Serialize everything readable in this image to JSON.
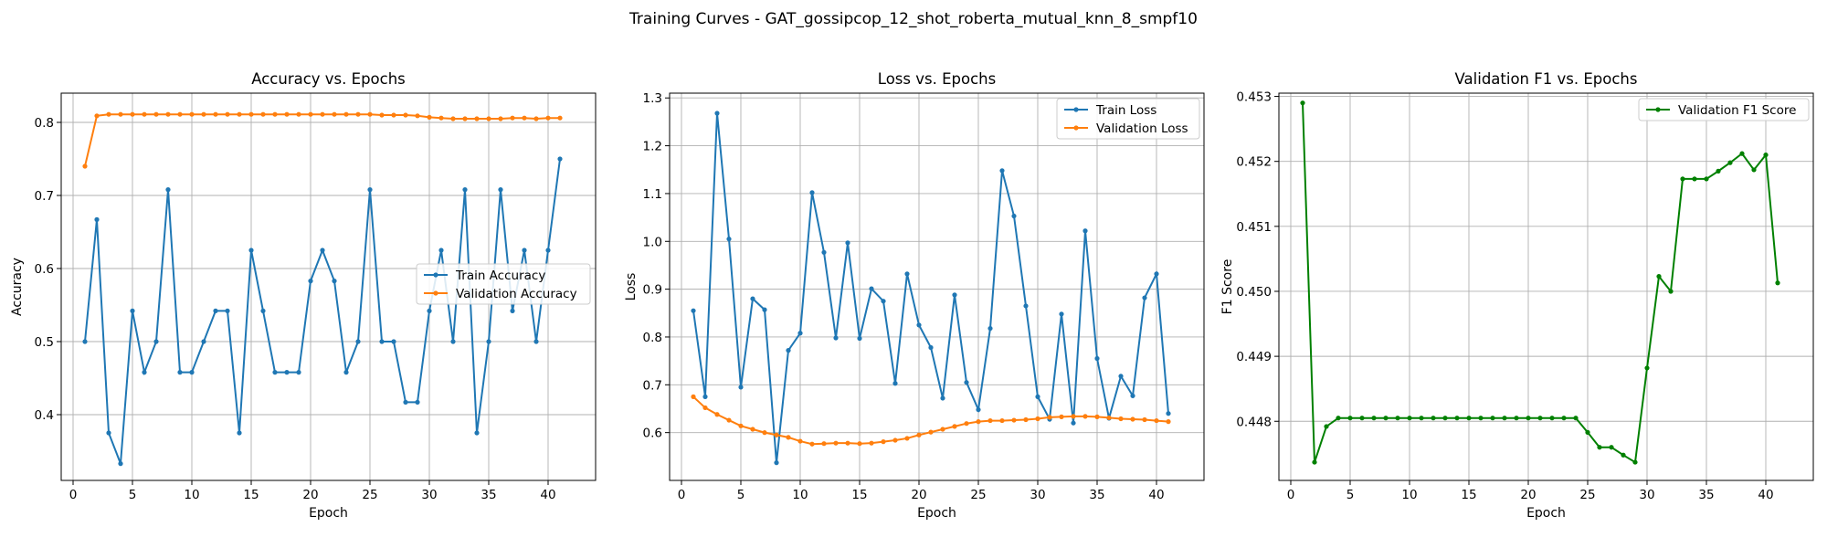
{
  "suptitle": "Training Curves - GAT_gossipcop_12_shot_roberta_mutual_knn_8_smpf10",
  "colors": {
    "blue": "#1f77b4",
    "orange": "#ff7f0e",
    "green": "#008000",
    "grid": "#b0b0b0"
  },
  "chart_data": [
    {
      "type": "line",
      "title": "Accuracy vs. Epochs",
      "xlabel": "Epoch",
      "ylabel": "Accuracy",
      "xlim": [
        -1,
        44
      ],
      "ylim": [
        0.31,
        0.84
      ],
      "xticks": [
        0,
        5,
        10,
        15,
        20,
        25,
        30,
        35,
        40
      ],
      "yticks": [
        0.4,
        0.5,
        0.6,
        0.7,
        0.8
      ],
      "grid": true,
      "legend": "center-right",
      "x": [
        1,
        2,
        3,
        4,
        5,
        6,
        7,
        8,
        9,
        10,
        11,
        12,
        13,
        14,
        15,
        16,
        17,
        18,
        19,
        20,
        21,
        22,
        23,
        24,
        25,
        26,
        27,
        28,
        29,
        30,
        31,
        32,
        33,
        34,
        35,
        36,
        37,
        38,
        39,
        40,
        41
      ],
      "series": [
        {
          "name": "Train Accuracy",
          "color": "#1f77b4",
          "values": [
            0.5,
            0.667,
            0.375,
            0.333,
            0.542,
            0.458,
            0.5,
            0.708,
            0.458,
            0.458,
            0.5,
            0.542,
            0.542,
            0.375,
            0.625,
            0.542,
            0.458,
            0.458,
            0.458,
            0.583,
            0.625,
            0.583,
            0.458,
            0.5,
            0.708,
            0.5,
            0.5,
            0.417,
            0.417,
            0.542,
            0.625,
            0.5,
            0.708,
            0.375,
            0.5,
            0.708,
            0.542,
            0.625,
            0.5,
            0.625,
            0.75
          ]
        },
        {
          "name": "Validation Accuracy",
          "color": "#ff7f0e",
          "values": [
            0.74,
            0.809,
            0.811,
            0.811,
            0.811,
            0.811,
            0.811,
            0.811,
            0.811,
            0.811,
            0.811,
            0.811,
            0.811,
            0.811,
            0.811,
            0.811,
            0.811,
            0.811,
            0.811,
            0.811,
            0.811,
            0.811,
            0.811,
            0.811,
            0.811,
            0.81,
            0.81,
            0.81,
            0.809,
            0.807,
            0.806,
            0.805,
            0.805,
            0.805,
            0.805,
            0.805,
            0.806,
            0.806,
            0.805,
            0.806,
            0.806
          ]
        }
      ]
    },
    {
      "type": "line",
      "title": "Loss vs. Epochs",
      "xlabel": "Epoch",
      "ylabel": "Loss",
      "xlim": [
        -1,
        44
      ],
      "ylim": [
        0.5,
        1.31
      ],
      "xticks": [
        0,
        5,
        10,
        15,
        20,
        25,
        30,
        35,
        40
      ],
      "yticks": [
        0.6,
        0.7,
        0.8,
        0.9,
        1.0,
        1.1,
        1.2,
        1.3
      ],
      "grid": true,
      "legend": "top-right",
      "x": [
        1,
        2,
        3,
        4,
        5,
        6,
        7,
        8,
        9,
        10,
        11,
        12,
        13,
        14,
        15,
        16,
        17,
        18,
        19,
        20,
        21,
        22,
        23,
        24,
        25,
        26,
        27,
        28,
        29,
        30,
        31,
        32,
        33,
        34,
        35,
        36,
        37,
        38,
        39,
        40,
        41
      ],
      "series": [
        {
          "name": "Train Loss",
          "color": "#1f77b4",
          "values": [
            0.855,
            0.675,
            1.268,
            1.005,
            0.695,
            0.88,
            0.857,
            0.537,
            0.772,
            0.808,
            1.102,
            0.977,
            0.798,
            0.997,
            0.797,
            0.901,
            0.875,
            0.703,
            0.932,
            0.825,
            0.778,
            0.672,
            0.888,
            0.705,
            0.648,
            0.818,
            1.148,
            1.053,
            0.865,
            0.675,
            0.628,
            0.848,
            0.62,
            1.022,
            0.755,
            0.63,
            0.718,
            0.677,
            0.882,
            0.932,
            0.64
          ]
        },
        {
          "name": "Validation Loss",
          "color": "#ff7f0e",
          "values": [
            0.675,
            0.652,
            0.638,
            0.626,
            0.614,
            0.607,
            0.6,
            0.595,
            0.59,
            0.582,
            0.576,
            0.577,
            0.578,
            0.578,
            0.577,
            0.578,
            0.581,
            0.584,
            0.588,
            0.595,
            0.601,
            0.607,
            0.613,
            0.619,
            0.623,
            0.625,
            0.625,
            0.626,
            0.627,
            0.629,
            0.632,
            0.633,
            0.634,
            0.634,
            0.633,
            0.631,
            0.629,
            0.628,
            0.627,
            0.625,
            0.623
          ]
        }
      ]
    },
    {
      "type": "line",
      "title": "Validation F1 vs. Epochs",
      "xlabel": "Epoch",
      "ylabel": "F1 Score",
      "xlim": [
        -1,
        44
      ],
      "ylim": [
        0.44709,
        0.45305
      ],
      "xticks": [
        0,
        5,
        10,
        15,
        20,
        25,
        30,
        35,
        40
      ],
      "yticks": [
        0.448,
        0.449,
        0.45,
        0.451,
        0.452,
        0.453
      ],
      "grid": true,
      "legend": "top-right",
      "x": [
        1,
        2,
        3,
        4,
        5,
        6,
        7,
        8,
        9,
        10,
        11,
        12,
        13,
        14,
        15,
        16,
        17,
        18,
        19,
        20,
        21,
        22,
        23,
        24,
        25,
        26,
        27,
        28,
        29,
        30,
        31,
        32,
        33,
        34,
        35,
        36,
        37,
        38,
        39,
        40,
        41
      ],
      "series": [
        {
          "name": "Validation F1 Score",
          "color": "#008000",
          "values": [
            0.4529,
            0.44737,
            0.44792,
            0.44805,
            0.44805,
            0.44805,
            0.44805,
            0.44805,
            0.44805,
            0.44805,
            0.44805,
            0.44805,
            0.44805,
            0.44805,
            0.44805,
            0.44805,
            0.44805,
            0.44805,
            0.44805,
            0.44805,
            0.44805,
            0.44805,
            0.44805,
            0.44805,
            0.44783,
            0.4476,
            0.4476,
            0.44748,
            0.44737,
            0.44882,
            0.45023,
            0.45,
            0.45173,
            0.45173,
            0.45173,
            0.45185,
            0.45198,
            0.45212,
            0.45187,
            0.4521,
            0.45013
          ]
        }
      ]
    }
  ]
}
